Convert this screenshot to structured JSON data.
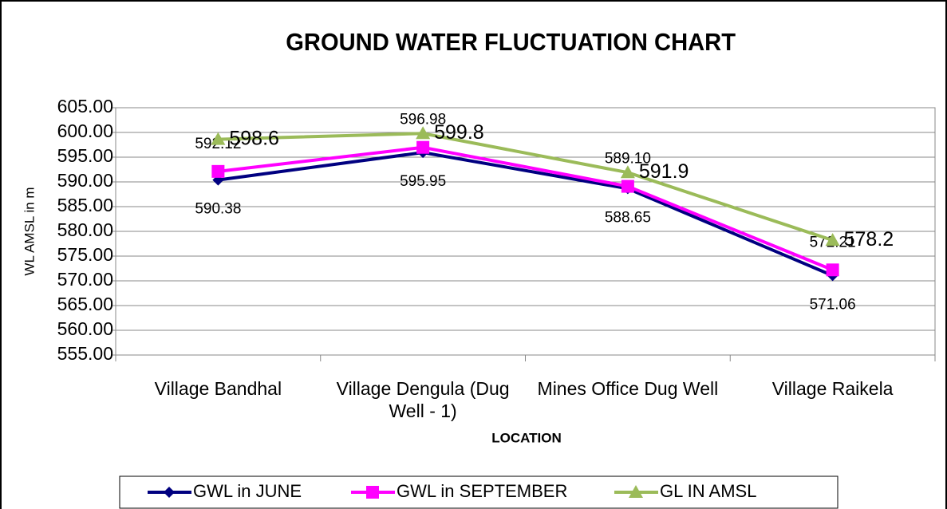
{
  "chart_data": {
    "type": "line",
    "title": "GROUND WATER FLUCTUATION CHART",
    "y_label": "WL AMSL in m",
    "x_label": "LOCATION",
    "categories": [
      "Village Bandhal",
      "Village Dengula (Dug Well - 1)",
      "Mines Office Dug Well",
      "Village Raikela"
    ],
    "series": [
      {
        "name": "GWL in JUNE",
        "color": "#000080",
        "marker": "diamond",
        "values": [
          590.38,
          595.95,
          588.65,
          571.06
        ]
      },
      {
        "name": "GWL in SEPTEMBER",
        "color": "#ff00ff",
        "marker": "square",
        "values": [
          592.12,
          596.98,
          589.1,
          572.21
        ],
        "value_labels": [
          "592.12",
          "596.98",
          "589.10",
          "572.21"
        ]
      },
      {
        "name": "GL IN AMSL",
        "color": "#9bbb59",
        "marker": "triangle",
        "values": [
          598.6,
          599.8,
          591.9,
          578.2
        ]
      }
    ],
    "ylim": [
      555,
      605
    ],
    "yticks": [
      {
        "value": 555,
        "label": "555.00"
      },
      {
        "value": 560,
        "label": "560.00"
      },
      {
        "value": 565,
        "label": "565.00"
      },
      {
        "value": 570,
        "label": "570.00"
      },
      {
        "value": 575,
        "label": "575.00"
      },
      {
        "value": 580,
        "label": "580.00"
      },
      {
        "value": 585,
        "label": "585.00"
      },
      {
        "value": 590,
        "label": "590.00"
      },
      {
        "value": 595,
        "label": "595.00"
      },
      {
        "value": 600,
        "label": "600.00"
      },
      {
        "value": 605,
        "label": "605.00"
      }
    ],
    "grid": true,
    "legend": "bottom"
  }
}
